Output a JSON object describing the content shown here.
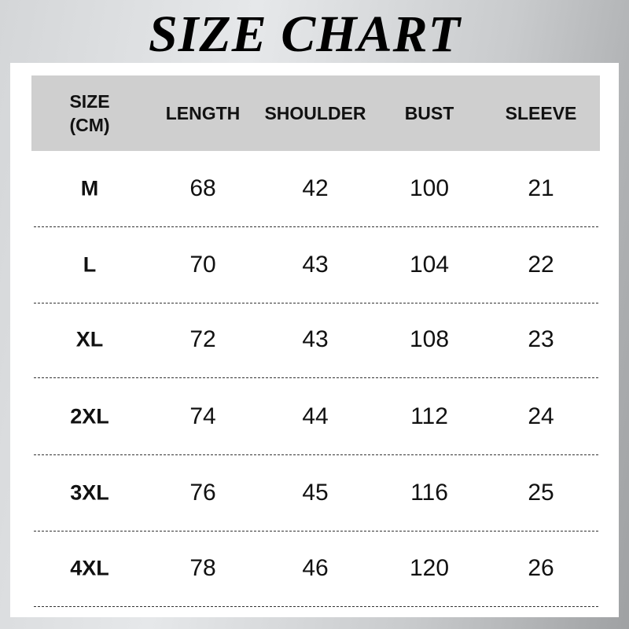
{
  "title": "SIZE CHART",
  "headers": [
    "SIZE\n(CM)",
    "LENGTH",
    "SHOULDER",
    "BUST",
    "SLEEVE"
  ],
  "header_size_line1": "SIZE",
  "header_size_line2": "(CM)",
  "rows": [
    [
      "M",
      "68",
      "42",
      "100",
      "21"
    ],
    [
      "L",
      "70",
      "43",
      "104",
      "22"
    ],
    [
      "XL",
      "72",
      "43",
      "108",
      "23"
    ],
    [
      "2XL",
      "74",
      "44",
      "112",
      "24"
    ],
    [
      "3XL",
      "76",
      "45",
      "116",
      "25"
    ],
    [
      "4XL",
      "78",
      "46",
      "120",
      "26"
    ]
  ],
  "colors": {
    "header_bg": "#cfcfcf",
    "panel_bg": "#ffffff",
    "text": "#111111"
  }
}
